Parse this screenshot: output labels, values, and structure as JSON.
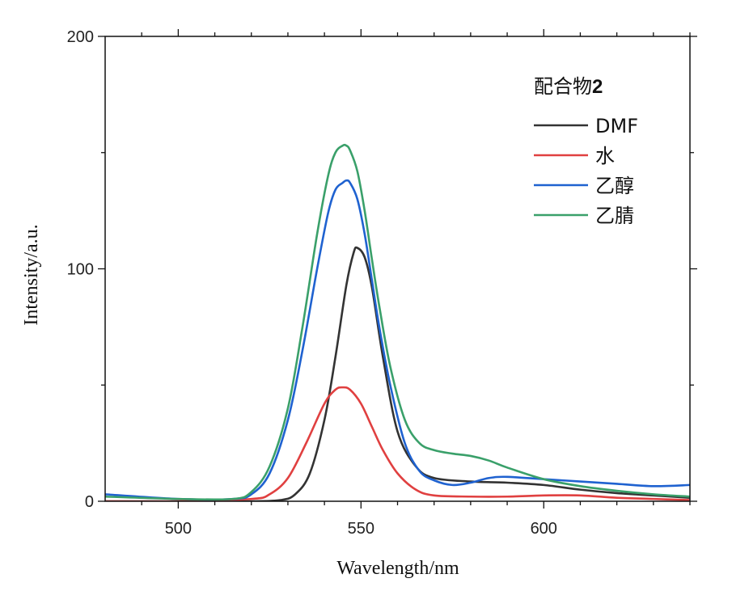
{
  "chart_data": {
    "type": "line",
    "title": "",
    "xlabel": "Wavelength/nm",
    "ylabel": "Intensity/a.u.",
    "xlim": [
      480,
      640
    ],
    "ylim": [
      0,
      200
    ],
    "x_ticks": [
      "500",
      "550",
      "600"
    ],
    "y_ticks": [
      "0",
      "100",
      "200"
    ],
    "legend": {
      "title_prefix": "配合物",
      "title_bold": "2",
      "position": "top-right"
    },
    "series": [
      {
        "name": "DMF",
        "color": "#333333",
        "x": [
          480,
          500,
          520,
          528,
          532,
          536,
          540,
          543,
          546,
          548,
          549,
          551,
          553,
          556,
          560,
          565,
          570,
          580,
          590,
          600,
          610,
          620,
          630,
          640
        ],
        "y": [
          0,
          0,
          0,
          0.5,
          3,
          12,
          35,
          62,
          93,
          107,
          109,
          105,
          92,
          62,
          30,
          15,
          10,
          8.5,
          8,
          7,
          5,
          3.5,
          2.5,
          1.5
        ]
      },
      {
        "name": "水",
        "color": "#e04040",
        "x": [
          480,
          500,
          520,
          525,
          530,
          535,
          540,
          543,
          545,
          547,
          550,
          553,
          556,
          560,
          565,
          570,
          580,
          590,
          600,
          610,
          620,
          630,
          640
        ],
        "y": [
          0,
          0,
          1,
          3,
          10,
          25,
          42,
          48,
          49,
          48,
          42,
          32,
          22,
          12,
          5,
          2.5,
          2,
          2,
          2.5,
          2.5,
          1.5,
          1,
          0.5
        ]
      },
      {
        "name": "乙醇",
        "color": "#1f62d0",
        "x": [
          480,
          500,
          515,
          520,
          525,
          530,
          534,
          538,
          541,
          543,
          545,
          546,
          547,
          549,
          551,
          553,
          555,
          558,
          562,
          566,
          570,
          575,
          580,
          585,
          590,
          600,
          610,
          620,
          630,
          640
        ],
        "y": [
          3,
          1,
          1,
          3,
          12,
          35,
          65,
          100,
          124,
          134,
          137,
          138,
          137,
          130,
          115,
          95,
          75,
          50,
          25,
          13,
          9,
          7,
          8,
          10,
          10.5,
          9.5,
          8.5,
          7.5,
          6.5,
          7
        ]
      },
      {
        "name": "乙腈",
        "color": "#3aa06a",
        "x": [
          480,
          500,
          515,
          520,
          525,
          530,
          534,
          538,
          541,
          543,
          545,
          546,
          547,
          549,
          551,
          553,
          555,
          558,
          562,
          566,
          570,
          575,
          580,
          585,
          590,
          600,
          610,
          620,
          630,
          640
        ],
        "y": [
          2,
          1,
          1,
          4,
          15,
          40,
          75,
          115,
          140,
          150,
          153,
          153,
          151,
          142,
          125,
          104,
          84,
          58,
          35,
          25,
          22,
          20.5,
          19.5,
          17.5,
          14.5,
          9.5,
          6.5,
          4.5,
          3,
          2
        ]
      }
    ]
  }
}
